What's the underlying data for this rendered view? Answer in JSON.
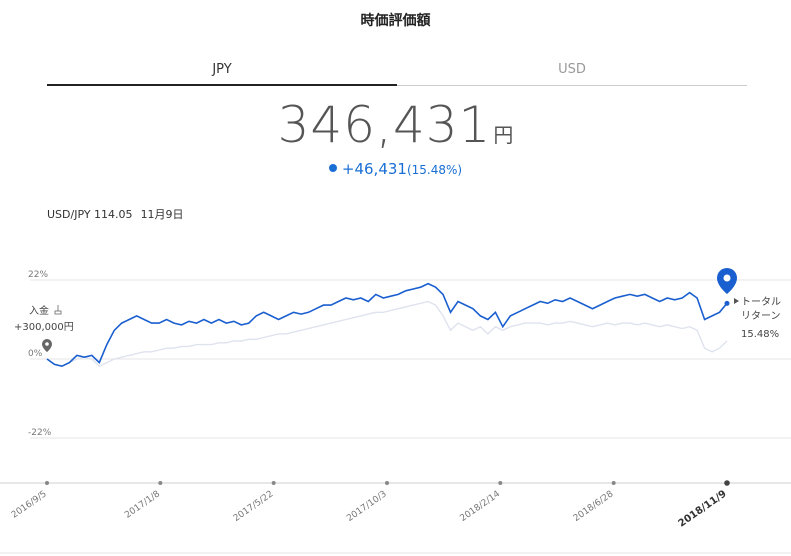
{
  "page": {
    "title": "時価評価額"
  },
  "tabs": [
    {
      "label": "JPY",
      "active": true
    },
    {
      "label": "USD",
      "active": false
    }
  ],
  "valuation": {
    "amount": "346,431",
    "unit": "円",
    "change": "+46,431",
    "change_pct": "(15.48%)"
  },
  "fx": {
    "rate_label": "USD/JPY 114.05",
    "date": "11月9日"
  },
  "deposit": {
    "label": "入金",
    "icon": "deposit-icon",
    "amount": "+300,000円"
  },
  "total_return": {
    "label_line1": "トータル",
    "label_line2": "リターン",
    "value": "15.48%"
  },
  "colors": {
    "main_line": "#1a5fcf",
    "compare_line": "#dfe3ee",
    "accent": "#1a6fd4"
  },
  "chart_data": {
    "type": "line",
    "y_ticks": [
      "22%",
      "0%",
      "-22%"
    ],
    "ylim": [
      -35,
      28
    ],
    "x_ticks": [
      "2016/9/5",
      "2017/1/8",
      "2017/5/22",
      "2017/10/3",
      "2018/2/14",
      "2018/6/28",
      "2018/11/9"
    ],
    "series": [
      {
        "values": [
          0,
          -1.5,
          -2,
          -1,
          1,
          0.5,
          1,
          -1,
          4,
          8,
          10,
          11,
          12,
          11,
          10,
          10,
          11,
          10,
          9.5,
          10.5,
          10,
          11,
          10,
          11,
          10,
          10.5,
          9.5,
          10,
          12,
          13,
          12,
          11,
          12,
          13,
          12.5,
          13,
          14,
          15,
          15,
          16,
          17,
          16.5,
          17,
          16,
          18,
          17,
          17.5,
          18,
          19,
          19.5,
          20,
          21,
          20,
          18,
          13,
          16,
          15,
          14,
          12,
          11,
          13,
          9,
          12,
          13,
          14,
          15,
          16,
          15.5,
          16.5,
          16,
          17,
          16,
          15,
          14,
          15,
          16,
          17,
          17.5,
          18,
          17.5,
          18,
          17,
          16,
          17,
          16.5,
          17,
          18.5,
          17,
          11,
          12,
          13,
          15.5
        ]
      },
      {
        "values": [
          0,
          -1.5,
          -2,
          -1,
          0,
          0.5,
          0,
          -2,
          -1,
          0,
          0.5,
          1,
          1.5,
          2,
          2,
          2.5,
          3,
          3,
          3.5,
          3.5,
          4,
          4,
          4,
          4.5,
          4.5,
          5,
          5,
          5.5,
          5.5,
          6,
          6.5,
          7,
          7,
          7.5,
          8,
          8.5,
          9,
          9.5,
          10,
          10.5,
          11,
          11.5,
          12,
          12.5,
          13,
          13,
          13.5,
          14,
          14.5,
          15,
          15.5,
          16,
          15,
          12,
          8,
          10,
          9,
          8,
          9,
          7,
          9,
          8,
          9,
          9.5,
          10,
          10,
          10,
          9.5,
          10,
          10,
          10.5,
          10,
          9.5,
          9,
          9.5,
          10,
          9.5,
          10,
          10,
          9.5,
          10,
          9.5,
          9,
          9.5,
          9,
          8.5,
          9,
          8,
          3,
          2,
          3,
          5
        ]
      }
    ]
  }
}
